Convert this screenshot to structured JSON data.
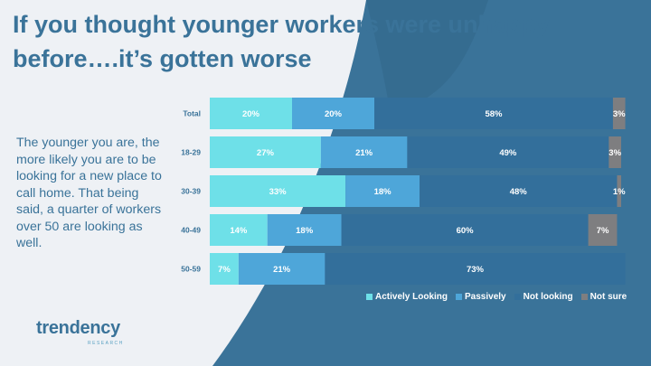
{
  "slide": {
    "title_line1": "If you thought younger workers were unhappy",
    "title_line2": "before….it’s gotten worse",
    "body": "The younger you are, the more likely you are to be looking for a new place to call home. That being said, a quarter of workers over 50 are looking as well.",
    "logo_text": "trendency",
    "logo_subtext": "RESEARCH"
  },
  "colors": {
    "background_light": "#eef1f5",
    "background_dark": "#3a7399",
    "accent_dark": "#2f5f80",
    "title": "#3a7399"
  },
  "chart_data": {
    "type": "bar",
    "orientation": "horizontal",
    "stacked": true,
    "categories": [
      "Total",
      "18-29",
      "30-39",
      "40-49",
      "50-59"
    ],
    "series": [
      {
        "name": "Actively Looking",
        "color": "#6ee0e8",
        "values": [
          20,
          27,
          33,
          14,
          7
        ]
      },
      {
        "name": "Passively",
        "color": "#4ea6d9",
        "values": [
          20,
          21,
          18,
          18,
          21
        ]
      },
      {
        "name": "Not looking",
        "color": "#336f9b",
        "values": [
          58,
          49,
          48,
          60,
          73
        ]
      },
      {
        "name": "Not sure",
        "color": "#7e7e80",
        "values": [
          3,
          3,
          1,
          7,
          0
        ]
      }
    ],
    "value_labels": [
      [
        "20%",
        "20%",
        "58%",
        "3%"
      ],
      [
        "27%",
        "21%",
        "49%",
        "3%"
      ],
      [
        "33%",
        "18%",
        "48%",
        "1%"
      ],
      [
        "14%",
        "18%",
        "60%",
        "7%"
      ],
      [
        "7%",
        "21%",
        "73%",
        ""
      ]
    ],
    "xlim": [
      0,
      100
    ]
  }
}
